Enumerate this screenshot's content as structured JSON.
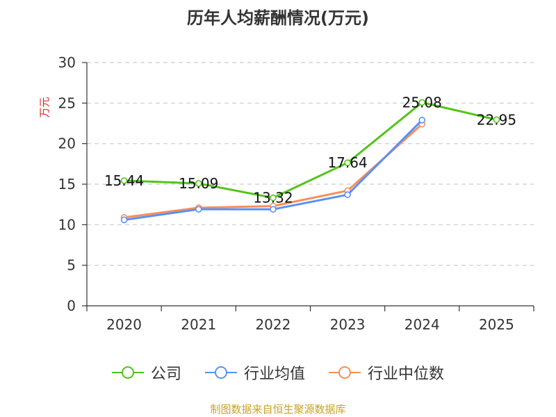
{
  "title": "历年人均薪酬情况(万元)",
  "source": "制图数据来自恒生聚源数据库",
  "colors": {
    "company": "#52c41a",
    "industry_avg": "#5b8ff9",
    "industry_median": "#f6905a",
    "axis": "#333333",
    "grid": "#cccccc",
    "ylabel": "#e02020",
    "source": "#c9a227"
  },
  "chart_data": {
    "type": "line",
    "ylabel": "万元",
    "ylim": [
      0,
      30
    ],
    "yticks": [
      0,
      5,
      10,
      15,
      20,
      25,
      30
    ],
    "grid": true,
    "legend_position": "bottom",
    "categories": [
      "2020",
      "2021",
      "2022",
      "2023",
      "2024",
      "2025"
    ],
    "series": [
      {
        "name": "公司",
        "key": "company",
        "values": [
          15.44,
          15.09,
          13.32,
          17.64,
          25.08,
          22.95
        ],
        "labels": [
          "15.44",
          "15.09",
          "13.32",
          "17.64",
          "25.08",
          "22.95"
        ]
      },
      {
        "name": "行业均值",
        "key": "industry_avg",
        "values": [
          10.6,
          11.9,
          11.9,
          13.7,
          22.9,
          null
        ]
      },
      {
        "name": "行业中位数",
        "key": "industry_median",
        "values": [
          10.9,
          12.1,
          12.3,
          14.2,
          22.4,
          null
        ]
      }
    ]
  }
}
